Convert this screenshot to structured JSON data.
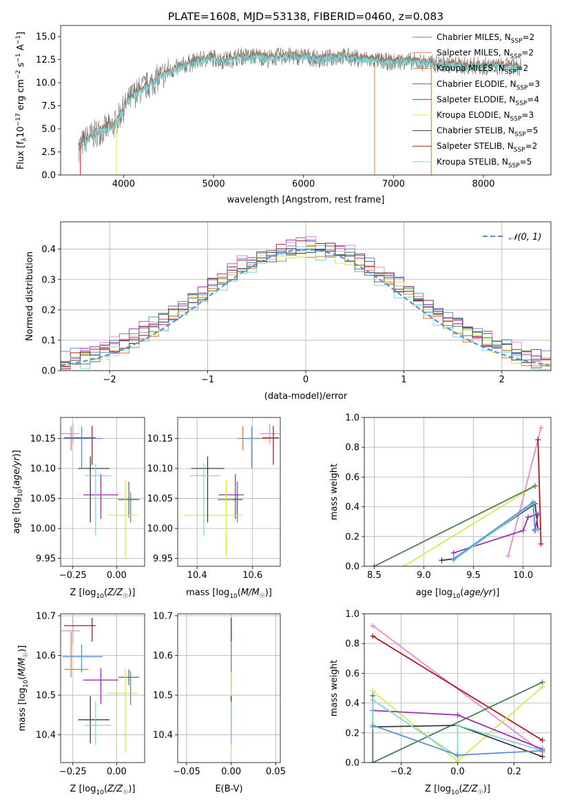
{
  "figure": {
    "title": "PLATE=1608, MJD=53138, FIBERID=0460, z=0.083"
  },
  "chart_data": [
    {
      "id": "spectrum",
      "type": "line",
      "title": "PLATE=1608, MJD=53138, FIBERID=0460, z=0.083",
      "xlabel": "wavelength [Angstrom, rest frame]",
      "ylabel": "Flux [f_λ 10^-17 erg cm^-2 s^-1 A^-1]",
      "xlim": [
        3300,
        8750
      ],
      "ylim": [
        0,
        16.2
      ],
      "xticks": [
        4000,
        5000,
        6000,
        7000,
        8000
      ],
      "yticks": [
        0.0,
        2.5,
        5.0,
        7.5,
        10.0,
        12.5,
        15.0
      ],
      "legend_position": "top-right",
      "grid": false,
      "x": [
        3500,
        3600,
        3700,
        3800,
        3900,
        4000,
        4100,
        4200,
        4300,
        4400,
        4500,
        4600,
        4700,
        4800,
        4900,
        5000,
        5100,
        5200,
        5300,
        5400,
        5500,
        5600,
        5700,
        5800,
        5900,
        6000,
        6100,
        6200,
        6300,
        6400,
        6500,
        6600,
        6700,
        6800,
        6900,
        7000,
        7100,
        7200,
        7300,
        7400,
        7500,
        7600,
        7700,
        7800,
        7900,
        8000,
        8100,
        8200,
        8300,
        8400
      ],
      "y": [
        3.0,
        4.0,
        4.6,
        5.0,
        5.4,
        7.2,
        8.6,
        9.3,
        9.9,
        10.6,
        11.2,
        11.6,
        12.0,
        12.3,
        12.6,
        12.7,
        12.4,
        12.6,
        12.9,
        12.8,
        12.9,
        12.6,
        12.8,
        12.9,
        12.8,
        12.9,
        12.7,
        12.5,
        12.7,
        12.9,
        12.8,
        12.6,
        12.5,
        12.4,
        12.3,
        12.2,
        12.4,
        12.3,
        12.2,
        12.1,
        12.0,
        12.0,
        11.9,
        11.8,
        11.9,
        11.8,
        11.7,
        11.8,
        11.7,
        11.7
      ],
      "series": [
        {
          "name": "Chabrier MILES, N_SSP=2",
          "color": "#5b8e7d"
        },
        {
          "name": "Salpeter MILES, N_SSP=2",
          "color": "#e58a6e"
        },
        {
          "name": "Kroupa MILES, N_SSP=2",
          "color": "#e07a2d"
        },
        {
          "name": "Chabrier ELODIE, N_SSP=3",
          "color": "#4a7d53"
        },
        {
          "name": "Salpeter ELODIE, N_SSP=4",
          "color": "#9b2fae"
        },
        {
          "name": "Kroupa ELODIE, N_SSP=3",
          "color": "#d8e84a"
        },
        {
          "name": "Chabrier STELIB, N_SSP=5",
          "color": "#3a3a3a"
        },
        {
          "name": "Salpeter STELIB, N_SSP=2",
          "color": "#b0171f"
        },
        {
          "name": "Kroupa STELIB, N_SSP=5",
          "color": "#7fd6d8"
        }
      ]
    },
    {
      "id": "residuals",
      "type": "line",
      "xlabel": "(data-model)/error",
      "ylabel": "Normed distribution",
      "xlim": [
        -2.5,
        2.5
      ],
      "ylim": [
        0,
        0.49
      ],
      "xticks": [
        -2,
        -1,
        0,
        1,
        2
      ],
      "yticks": [
        0.0,
        0.1,
        0.2,
        0.3,
        0.4
      ],
      "grid": true,
      "legend_position": "top-right",
      "reference_curve": {
        "name": "𝒩(0, 1)",
        "color": "#5b8ed6",
        "mean": 0,
        "sigma": 1
      },
      "bin_edges": [
        -2.5,
        -2.4,
        -2.3,
        -2.2,
        -2.1,
        -2.0,
        -1.9,
        -1.8,
        -1.7,
        -1.6,
        -1.5,
        -1.4,
        -1.3,
        -1.2,
        -1.1,
        -1.0,
        -0.9,
        -0.8,
        -0.7,
        -0.6,
        -0.5,
        -0.4,
        -0.3,
        -0.2,
        -0.1,
        0.0,
        0.1,
        0.2,
        0.3,
        0.4,
        0.5,
        0.6,
        0.7,
        0.8,
        0.9,
        1.0,
        1.1,
        1.2,
        1.3,
        1.4,
        1.5,
        1.6,
        1.7,
        1.8,
        1.9,
        2.0,
        2.1,
        2.2,
        2.3,
        2.4,
        2.5
      ],
      "histograms": [
        {
          "color": "#b0171f",
          "offset": 0.0
        },
        {
          "color": "#5b8ed6",
          "offset": 0.012
        },
        {
          "color": "#e07a2d",
          "offset": -0.012
        },
        {
          "color": "#9b2fae",
          "offset": 0.008
        },
        {
          "color": "#d8e84a",
          "offset": -0.008
        },
        {
          "color": "#e58ad0",
          "offset": 0.016
        },
        {
          "color": "#7fd6d8",
          "offset": -0.016
        },
        {
          "color": "#3a3a3a",
          "offset": 0.004
        },
        {
          "color": "#4a7d53",
          "offset": -0.004
        }
      ]
    },
    {
      "id": "age-vs-Z",
      "type": "scatter",
      "xlabel": "Z [log10(Z/Z☉)]",
      "ylabel": "age  [log10(age/yr)]",
      "xlim": [
        -0.32,
        0.16
      ],
      "ylim": [
        9.937,
        10.185
      ],
      "xticks": [
        -0.25,
        0.0
      ],
      "yticks": [
        9.95,
        10.0,
        10.05,
        10.1,
        10.15
      ],
      "grid": true
    },
    {
      "id": "age-vs-mass",
      "type": "scatter",
      "xlabel": "mass [log10(M/M☉)]",
      "ylabel": "",
      "xlim": [
        10.33,
        10.7
      ],
      "ylim": [
        9.937,
        10.185
      ],
      "xticks": [
        10.4,
        10.6
      ],
      "yticks": [
        9.95,
        10.0,
        10.05,
        10.1,
        10.15
      ],
      "grid": true
    },
    {
      "id": "weight-vs-age",
      "type": "line",
      "xlabel": "age  [log10(age/yr)]",
      "ylabel": "mass weight",
      "xlim": [
        8.4,
        10.28
      ],
      "ylim": [
        0,
        1.0
      ],
      "xticks": [
        8.5,
        9.0,
        9.5,
        10.0
      ],
      "yticks": [
        0.0,
        0.2,
        0.4,
        0.6,
        0.8,
        1.0
      ],
      "grid": true
    },
    {
      "id": "mass-vs-Z",
      "type": "scatter",
      "xlabel": "Z [log10(Z/Z☉)]",
      "ylabel": "mass [log10(M/M☉)]",
      "xlim": [
        -0.32,
        0.16
      ],
      "ylim": [
        10.33,
        10.705
      ],
      "xticks": [
        -0.25,
        0.0
      ],
      "yticks": [
        10.4,
        10.5,
        10.6,
        10.7
      ],
      "grid": true
    },
    {
      "id": "mass-vs-ebv",
      "type": "scatter",
      "xlabel": "E(B-V)",
      "ylabel": "",
      "xlim": [
        -0.06,
        0.055
      ],
      "ylim": [
        10.33,
        10.705
      ],
      "xticks": [
        -0.05,
        0.0,
        0.05
      ],
      "yticks": [
        10.4,
        10.5,
        10.6,
        10.7
      ],
      "grid": true
    },
    {
      "id": "weight-vs-Z",
      "type": "line",
      "xlabel": "Z [log10(Z/Z☉)]",
      "ylabel": "mass weight",
      "xlim": [
        -0.33,
        0.33
      ],
      "ylim": [
        0,
        1.0
      ],
      "xticks": [
        -0.2,
        0.0,
        0.2
      ],
      "yticks": [
        0.0,
        0.2,
        0.4,
        0.6,
        0.8,
        1.0
      ],
      "grid": true
    }
  ],
  "fits": [
    {
      "color": "#5b8e7d",
      "age": 10.048,
      "age_err": [
        0.038,
        0.012
      ],
      "Z": 0.08,
      "Z_err": [
        0.07,
        0.04
      ],
      "mass": 10.545,
      "mass_err": [
        0.07,
        0.015
      ],
      "ebv": 0.0
    },
    {
      "color": "#e58ad0",
      "age": 10.158,
      "age_err": [
        0.017,
        0.017
      ],
      "Z": -0.25,
      "Z_err": [
        0.07,
        0.04
      ],
      "mass": 10.662,
      "mass_err": [
        0.035,
        0.035
      ],
      "ebv": 0.0
    },
    {
      "color": "#e07a2d",
      "age": 10.15,
      "age_err": [
        0.02,
        0.02
      ],
      "Z": -0.26,
      "Z_err": [
        0.04,
        0.1
      ],
      "mass": 10.565,
      "mass_err": [
        0.02,
        0.095
      ],
      "ebv": 0.0
    },
    {
      "color": "#4a7d53",
      "age": 10.048,
      "age_err": [
        0.03,
        0.03
      ],
      "Z": 0.07,
      "Z_err": [
        0.06,
        0.06
      ],
      "mass": 10.545,
      "mass_err": [
        0.02,
        0.02
      ],
      "ebv": 0.0
    },
    {
      "color": "#9b2fae",
      "age": 10.056,
      "age_err": [
        0.04,
        0.035
      ],
      "Z": -0.09,
      "Z_err": [
        0.1,
        0.1
      ],
      "mass": 10.538,
      "mass_err": [
        0.06,
        0.03
      ],
      "ebv": 0.0
    },
    {
      "color": "#d8e84a",
      "age": 10.022,
      "age_err": [
        0.07,
        0.06
      ],
      "Z": 0.05,
      "Z_err": [
        0.1,
        0.07
      ],
      "mass": 10.505,
      "mass_err": [
        0.15,
        0.06
      ],
      "ebv": 0.0
    },
    {
      "color": "#3a3a3a",
      "age": 10.1,
      "age_err": [
        0.09,
        0.02
      ],
      "Z": -0.15,
      "Z_err": [
        0.07,
        0.11
      ],
      "mass": 10.438,
      "mass_err": [
        0.06,
        0.06
      ],
      "ebv": 0.0
    },
    {
      "color": "#b0171f",
      "age": 10.151,
      "age_err": [
        0.045,
        0.02
      ],
      "Z": -0.14,
      "Z_err": [
        0.16,
        0.02
      ],
      "mass": 10.675,
      "mass_err": [
        0.04,
        0.02
      ],
      "ebv": 0.0
    },
    {
      "color": "#7fd6d8",
      "age": 10.088,
      "age_err": [
        0.1,
        0.02
      ],
      "Z": -0.12,
      "Z_err": [
        0.06,
        0.09
      ],
      "mass": 10.424,
      "mass_err": [
        0.05,
        0.06
      ],
      "ebv": 0.0
    },
    {
      "color": "#5b8ed6",
      "age": 10.15,
      "age_err": [
        0.05,
        0.02
      ],
      "Z": -0.2,
      "Z_err": [
        0.11,
        0.12
      ],
      "mass": 10.597,
      "mass_err": [
        0.04,
        0.03
      ],
      "ebv": 0.0
    }
  ],
  "weights": [
    {
      "color": "#e58ad0",
      "ages": [
        9.85,
        10.18
      ],
      "Zs": [
        -0.3,
        0.3
      ],
      "w": [
        0.07,
        0.93
      ],
      "wZ": [
        0.92,
        0.07
      ]
    },
    {
      "color": "#b0171f",
      "ages": [
        10.15,
        10.18
      ],
      "Zs": [
        -0.3,
        0.3
      ],
      "w": [
        0.85,
        0.15
      ],
      "wZ": [
        0.85,
        0.15
      ]
    },
    {
      "color": "#d8e84a",
      "ages": [
        8.8,
        10.12
      ],
      "Zs": [
        -0.3,
        0.0,
        0.3
      ],
      "w": [
        0.0,
        0.54
      ],
      "wZ": [
        0.48,
        0.01,
        0.51
      ]
    },
    {
      "color": "#4a7d53",
      "ages": [
        8.5,
        10.12
      ],
      "Zs": [
        -0.3,
        -0.3,
        0.3
      ],
      "w": [
        0.0,
        0.54
      ],
      "wZ": [
        0.45,
        0.0,
        0.54
      ]
    },
    {
      "color": "#3a3a3a",
      "ages": [
        9.18,
        9.3,
        10.12,
        10.15,
        10.12
      ],
      "Zs": [
        -0.3,
        0.0,
        0.3
      ],
      "w": [
        0.04,
        0.05,
        0.42,
        0.25,
        0.24
      ],
      "wZ": [
        0.24,
        0.25,
        0.04
      ]
    },
    {
      "color": "#9b2fae",
      "ages": [
        9.3,
        10.0,
        10.05,
        10.15,
        10.12
      ],
      "Zs": [
        -0.3,
        0.0,
        0.3
      ],
      "w": [
        0.09,
        0.24,
        0.33,
        0.35,
        0.24
      ],
      "wZ": [
        0.35,
        0.32,
        0.09
      ]
    },
    {
      "color": "#7fd6d8",
      "ages": [
        9.3,
        10.1,
        10.12,
        10.15
      ],
      "Zs": [
        -0.3,
        -0.3,
        0.0,
        0.0,
        0.3
      ],
      "w": [
        0.04,
        0.42,
        0.25,
        0.24
      ],
      "wZ": [
        0.24,
        0.42,
        0.04,
        0.25,
        0.08
      ]
    },
    {
      "color": "#5b8ed6",
      "ages": [
        9.3,
        10.1,
        10.12
      ],
      "Zs": [
        -0.3,
        0.0,
        0.3
      ],
      "w": [
        0.05,
        0.43,
        0.25
      ],
      "wZ": [
        0.25,
        0.05,
        0.08
      ]
    }
  ]
}
